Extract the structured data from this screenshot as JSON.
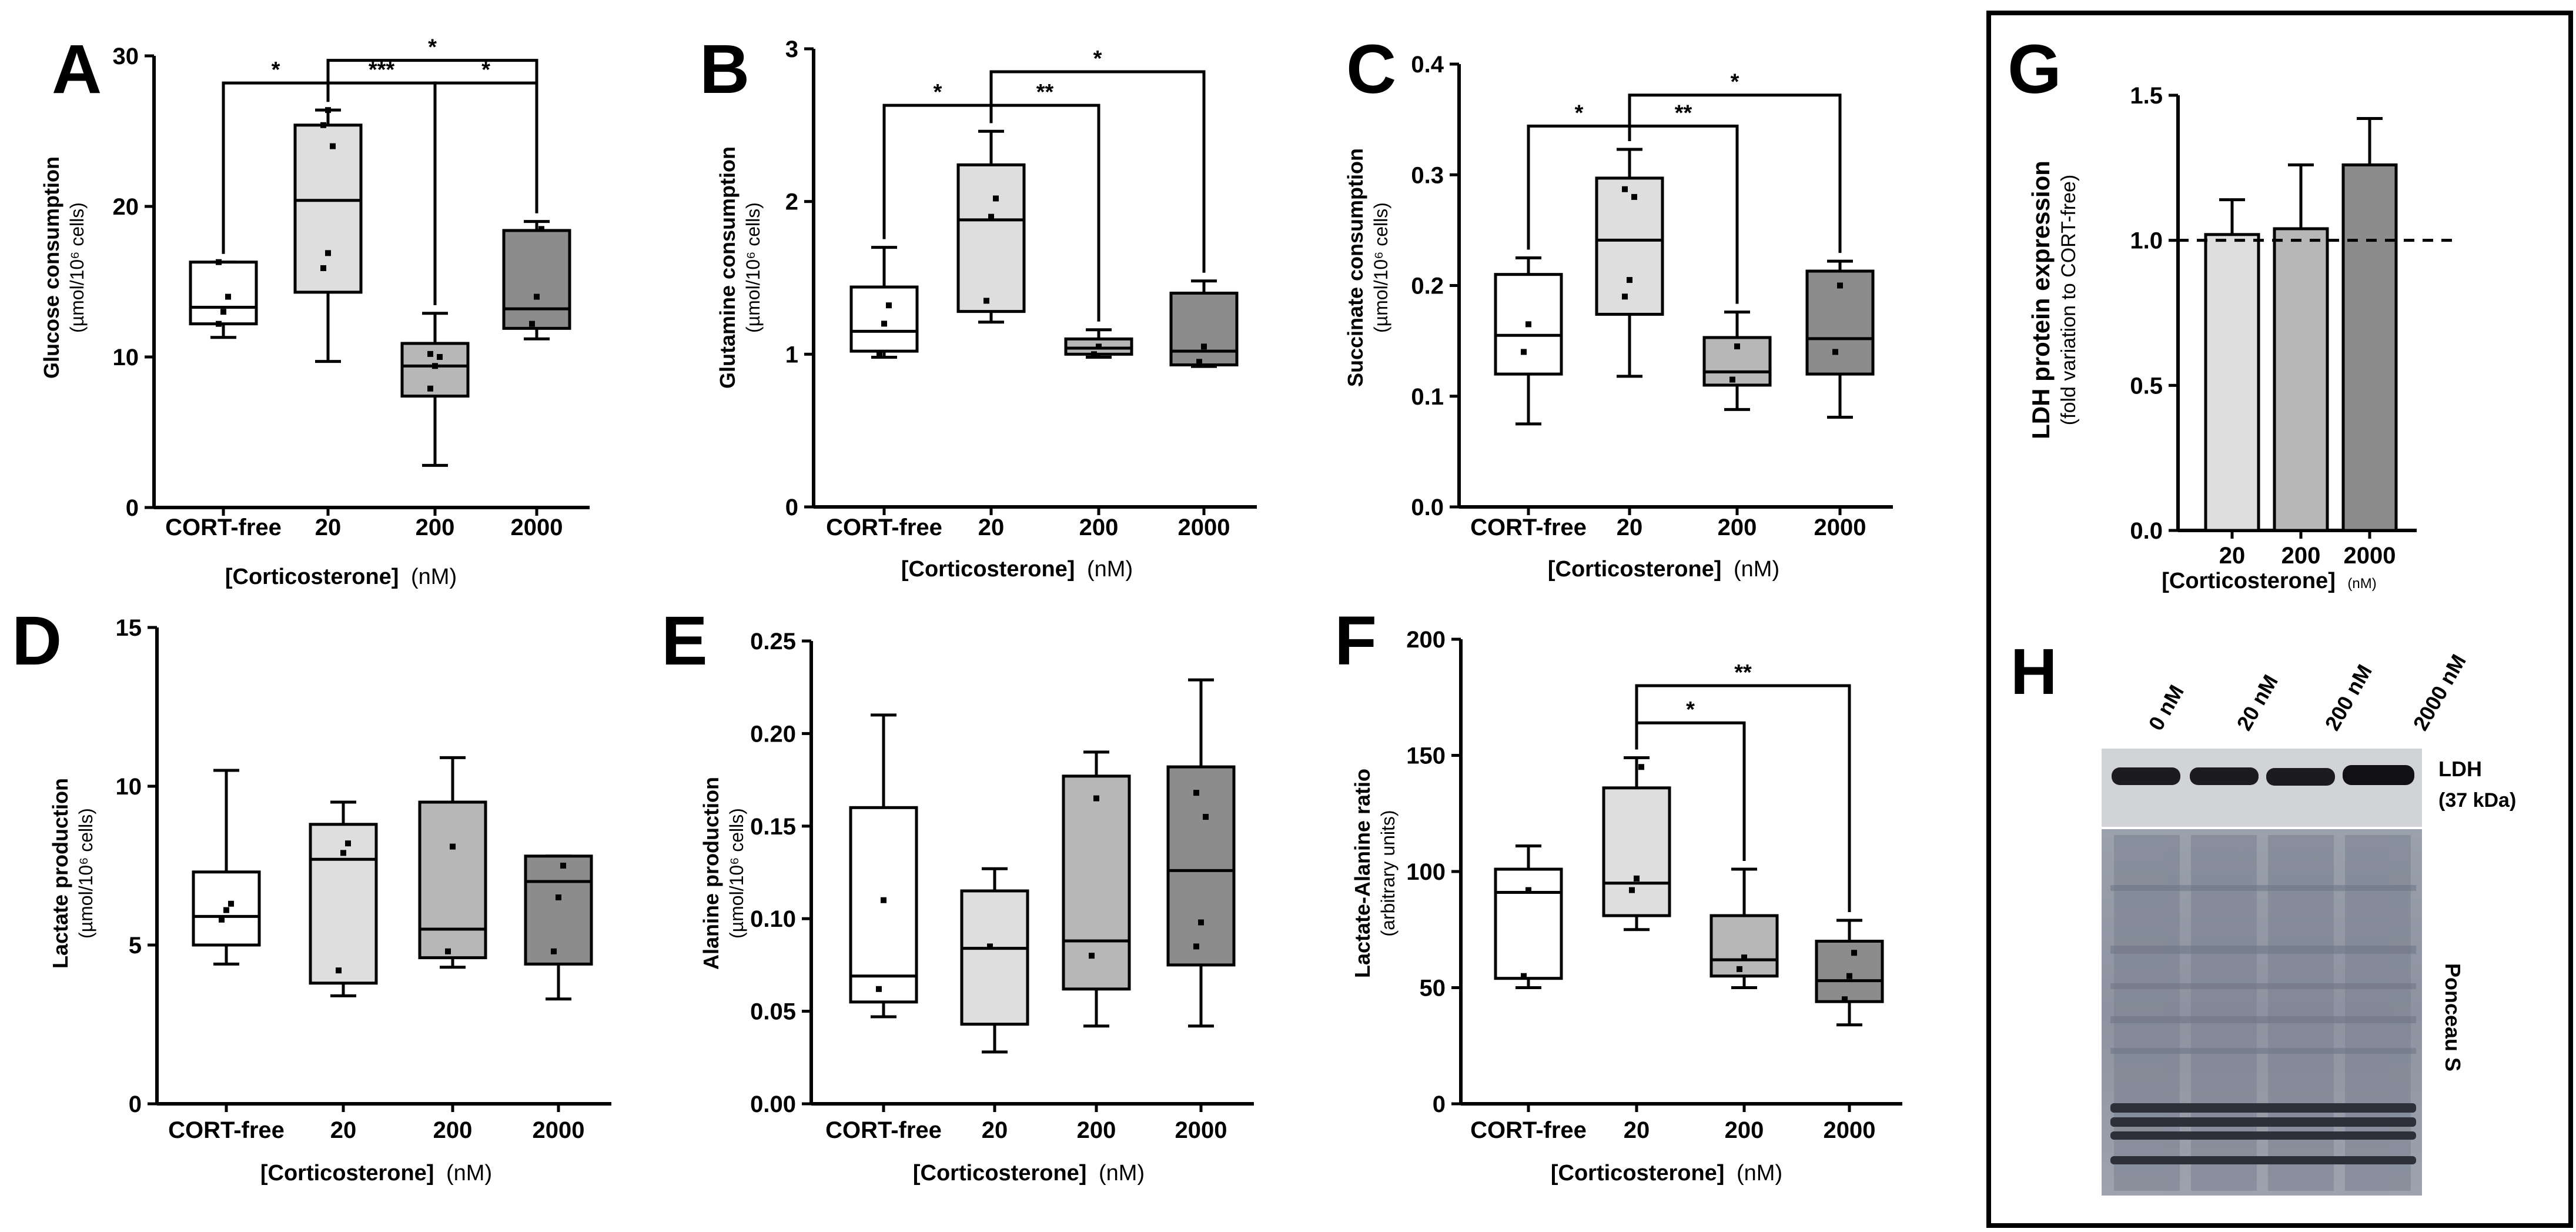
{
  "common": {
    "xlabel_main": "[Corticosterone]",
    "xlabel_unit": "(nM)",
    "box_colors": [
      "#ffffff",
      "#dedede",
      "#b7b7b7",
      "#8c8c8c"
    ],
    "bar_colors": [
      "#dedede",
      "#b7b7b7",
      "#8c8c8c"
    ]
  },
  "chart_data": [
    {
      "id": "A",
      "letter": "A",
      "type": "box",
      "ylabel_main": "Glucose consumption",
      "ylabel_sub": "(µmol/10⁶ cells)",
      "categories": [
        "CORT-free",
        "20",
        "200",
        "2000"
      ],
      "ylim": [
        0,
        30
      ],
      "yticks": [
        0,
        10,
        20,
        30
      ],
      "boxes": [
        {
          "min": 11.3,
          "q1": 12.2,
          "median": 13.3,
          "q3": 16.3,
          "max": 16.3,
          "points": [
            12.2,
            13.0,
            14.0,
            16.3
          ]
        },
        {
          "min": 9.7,
          "q1": 14.3,
          "median": 20.4,
          "q3": 25.4,
          "max": 26.4,
          "points": [
            15.9,
            16.9,
            24.0,
            25.4,
            26.4
          ]
        },
        {
          "min": 2.8,
          "q1": 7.4,
          "median": 9.4,
          "q3": 10.9,
          "max": 12.9,
          "points": [
            7.9,
            9.4,
            10.0,
            10.2
          ]
        },
        {
          "min": 11.2,
          "q1": 11.9,
          "median": 13.2,
          "q3": 18.4,
          "max": 19.0,
          "points": [
            12.2,
            14.0,
            18.5
          ]
        }
      ],
      "significance": [
        {
          "from": 0,
          "to": 1,
          "label": "*",
          "level": 28.2
        },
        {
          "from": 1,
          "to": 2,
          "label": "***",
          "level": 28.2
        },
        {
          "from": 2,
          "to": 3,
          "label": "*",
          "level": 28.2
        },
        {
          "from": 1,
          "to": 3,
          "label": "*",
          "level": 29.7
        }
      ]
    },
    {
      "id": "B",
      "letter": "B",
      "type": "box",
      "ylabel_main": "Glutamine consumption",
      "ylabel_sub": "(µmol/10⁶ cells)",
      "categories": [
        "CORT-free",
        "20",
        "200",
        "2000"
      ],
      "ylim": [
        0,
        3
      ],
      "yticks": [
        0,
        1,
        2,
        3
      ],
      "boxes": [
        {
          "min": 0.98,
          "q1": 1.02,
          "median": 1.15,
          "q3": 1.44,
          "max": 1.7,
          "points": [
            1.0,
            1.2,
            1.32
          ]
        },
        {
          "min": 1.21,
          "q1": 1.28,
          "median": 1.88,
          "q3": 2.24,
          "max": 2.46,
          "points": [
            1.35,
            1.9,
            2.02
          ]
        },
        {
          "min": 0.98,
          "q1": 1.0,
          "median": 1.04,
          "q3": 1.1,
          "max": 1.16,
          "points": [
            1.0,
            1.05
          ]
        },
        {
          "min": 0.92,
          "q1": 0.93,
          "median": 1.02,
          "q3": 1.4,
          "max": 1.48,
          "points": [
            0.95,
            1.05
          ]
        }
      ],
      "significance": [
        {
          "from": 0,
          "to": 1,
          "label": "*",
          "level": 2.63
        },
        {
          "from": 1,
          "to": 2,
          "label": "**",
          "level": 2.63
        },
        {
          "from": 1,
          "to": 3,
          "label": "*",
          "level": 2.85
        }
      ]
    },
    {
      "id": "C",
      "letter": "C",
      "type": "box",
      "ylabel_main": "Succinate consumption",
      "ylabel_sub": "(µmol/10⁶ cells)",
      "categories": [
        "CORT-free",
        "20",
        "200",
        "2000"
      ],
      "ylim": [
        0,
        0.4
      ],
      "yticks": [
        "0.0",
        "0.1",
        "0.2",
        "0.3",
        "0.4"
      ],
      "boxes": [
        {
          "min": 0.075,
          "q1": 0.12,
          "median": 0.155,
          "q3": 0.21,
          "max": 0.225,
          "points": [
            0.14,
            0.165
          ]
        },
        {
          "min": 0.118,
          "q1": 0.174,
          "median": 0.241,
          "q3": 0.297,
          "max": 0.323,
          "points": [
            0.19,
            0.205,
            0.28,
            0.287
          ]
        },
        {
          "min": 0.088,
          "q1": 0.11,
          "median": 0.122,
          "q3": 0.153,
          "max": 0.176,
          "points": [
            0.115,
            0.145
          ]
        },
        {
          "min": 0.081,
          "q1": 0.12,
          "median": 0.152,
          "q3": 0.213,
          "max": 0.222,
          "points": [
            0.14,
            0.2
          ]
        }
      ],
      "significance": [
        {
          "from": 0,
          "to": 1,
          "label": "*",
          "level": 0.344
        },
        {
          "from": 1,
          "to": 2,
          "label": "**",
          "level": 0.344
        },
        {
          "from": 1,
          "to": 3,
          "label": "*",
          "level": 0.372
        }
      ]
    },
    {
      "id": "D",
      "letter": "D",
      "type": "box",
      "ylabel_main": "Lactate production",
      "ylabel_sub": "(µmol/10⁶ cells)",
      "categories": [
        "CORT-free",
        "20",
        "200",
        "2000"
      ],
      "ylim": [
        0,
        15
      ],
      "yticks": [
        0,
        5,
        10,
        15
      ],
      "boxes": [
        {
          "min": 4.4,
          "q1": 5.0,
          "median": 5.9,
          "q3": 7.3,
          "max": 10.5,
          "points": [
            5.8,
            6.1,
            6.3
          ]
        },
        {
          "min": 3.4,
          "q1": 3.8,
          "median": 7.7,
          "q3": 8.8,
          "max": 9.5,
          "points": [
            4.2,
            7.9,
            8.2
          ]
        },
        {
          "min": 4.3,
          "q1": 4.6,
          "median": 5.5,
          "q3": 9.5,
          "max": 10.9,
          "points": [
            4.8,
            8.1
          ]
        },
        {
          "min": 3.3,
          "q1": 4.4,
          "median": 7.0,
          "q3": 7.8,
          "max": 7.8,
          "points": [
            4.8,
            6.5,
            7.5
          ]
        }
      ],
      "significance": []
    },
    {
      "id": "E",
      "letter": "E",
      "type": "box",
      "ylabel_main": "Alanine production",
      "ylabel_sub": "(µmol/10⁶ cells)",
      "categories": [
        "CORT-free",
        "20",
        "200",
        "2000"
      ],
      "ylim": [
        0,
        0.25
      ],
      "yticks": [
        "0.00",
        "0.05",
        "0.10",
        "0.15",
        "0.20",
        "0.25"
      ],
      "boxes": [
        {
          "min": 0.047,
          "q1": 0.055,
          "median": 0.069,
          "q3": 0.16,
          "max": 0.21,
          "points": [
            0.062,
            0.11
          ]
        },
        {
          "min": 0.028,
          "q1": 0.043,
          "median": 0.084,
          "q3": 0.115,
          "max": 0.127,
          "points": [
            0.085
          ]
        },
        {
          "min": 0.042,
          "q1": 0.062,
          "median": 0.088,
          "q3": 0.177,
          "max": 0.19,
          "points": [
            0.08,
            0.165
          ]
        },
        {
          "min": 0.042,
          "q1": 0.075,
          "median": 0.126,
          "q3": 0.182,
          "max": 0.229,
          "points": [
            0.085,
            0.098,
            0.155,
            0.168
          ]
        }
      ],
      "significance": []
    },
    {
      "id": "F",
      "letter": "F",
      "type": "box",
      "ylabel_main": "Lactate-Alanine ratio",
      "ylabel_sub": "(arbitrary units)",
      "categories": [
        "CORT-free",
        "20",
        "200",
        "2000"
      ],
      "ylim": [
        0,
        200
      ],
      "yticks": [
        0,
        50,
        100,
        150,
        200
      ],
      "boxes": [
        {
          "min": 50,
          "q1": 54,
          "median": 91,
          "q3": 101,
          "max": 111,
          "points": [
            55,
            92
          ]
        },
        {
          "min": 75,
          "q1": 81,
          "median": 95,
          "q3": 136,
          "max": 149,
          "points": [
            92,
            97,
            145
          ]
        },
        {
          "min": 50,
          "q1": 55,
          "median": 62,
          "q3": 81,
          "max": 101,
          "points": [
            58,
            63
          ]
        },
        {
          "min": 34,
          "q1": 44,
          "median": 53,
          "q3": 70,
          "max": 79,
          "points": [
            45,
            55,
            65
          ]
        }
      ],
      "significance": [
        {
          "from": 1,
          "to": 2,
          "label": "*",
          "level": 164
        },
        {
          "from": 1,
          "to": 3,
          "label": "**",
          "level": 180
        }
      ]
    },
    {
      "id": "G",
      "letter": "G",
      "type": "bar",
      "ylabel_main": "LDH protein expression",
      "ylabel_sub": "(fold variation to CORT-free)",
      "xlabel_main": "[Corticosterone]",
      "xlabel_unit": "(nM)",
      "categories": [
        "20",
        "200",
        "2000"
      ],
      "values": [
        1.02,
        1.04,
        1.26
      ],
      "errors": [
        0.12,
        0.22,
        0.16
      ],
      "reference_line": 1.0,
      "ylim": [
        0,
        1.5
      ],
      "yticks": [
        "0.0",
        "0.5",
        "1.0",
        "1.5"
      ]
    }
  ],
  "blot": {
    "letter": "H",
    "lanes": [
      "0 nM",
      "20 nM",
      "200 nM",
      "2000 nM"
    ],
    "ldh_label": "LDH",
    "ldh_sub": "(37 kDa)",
    "ponceau_label": "Ponceau S"
  }
}
